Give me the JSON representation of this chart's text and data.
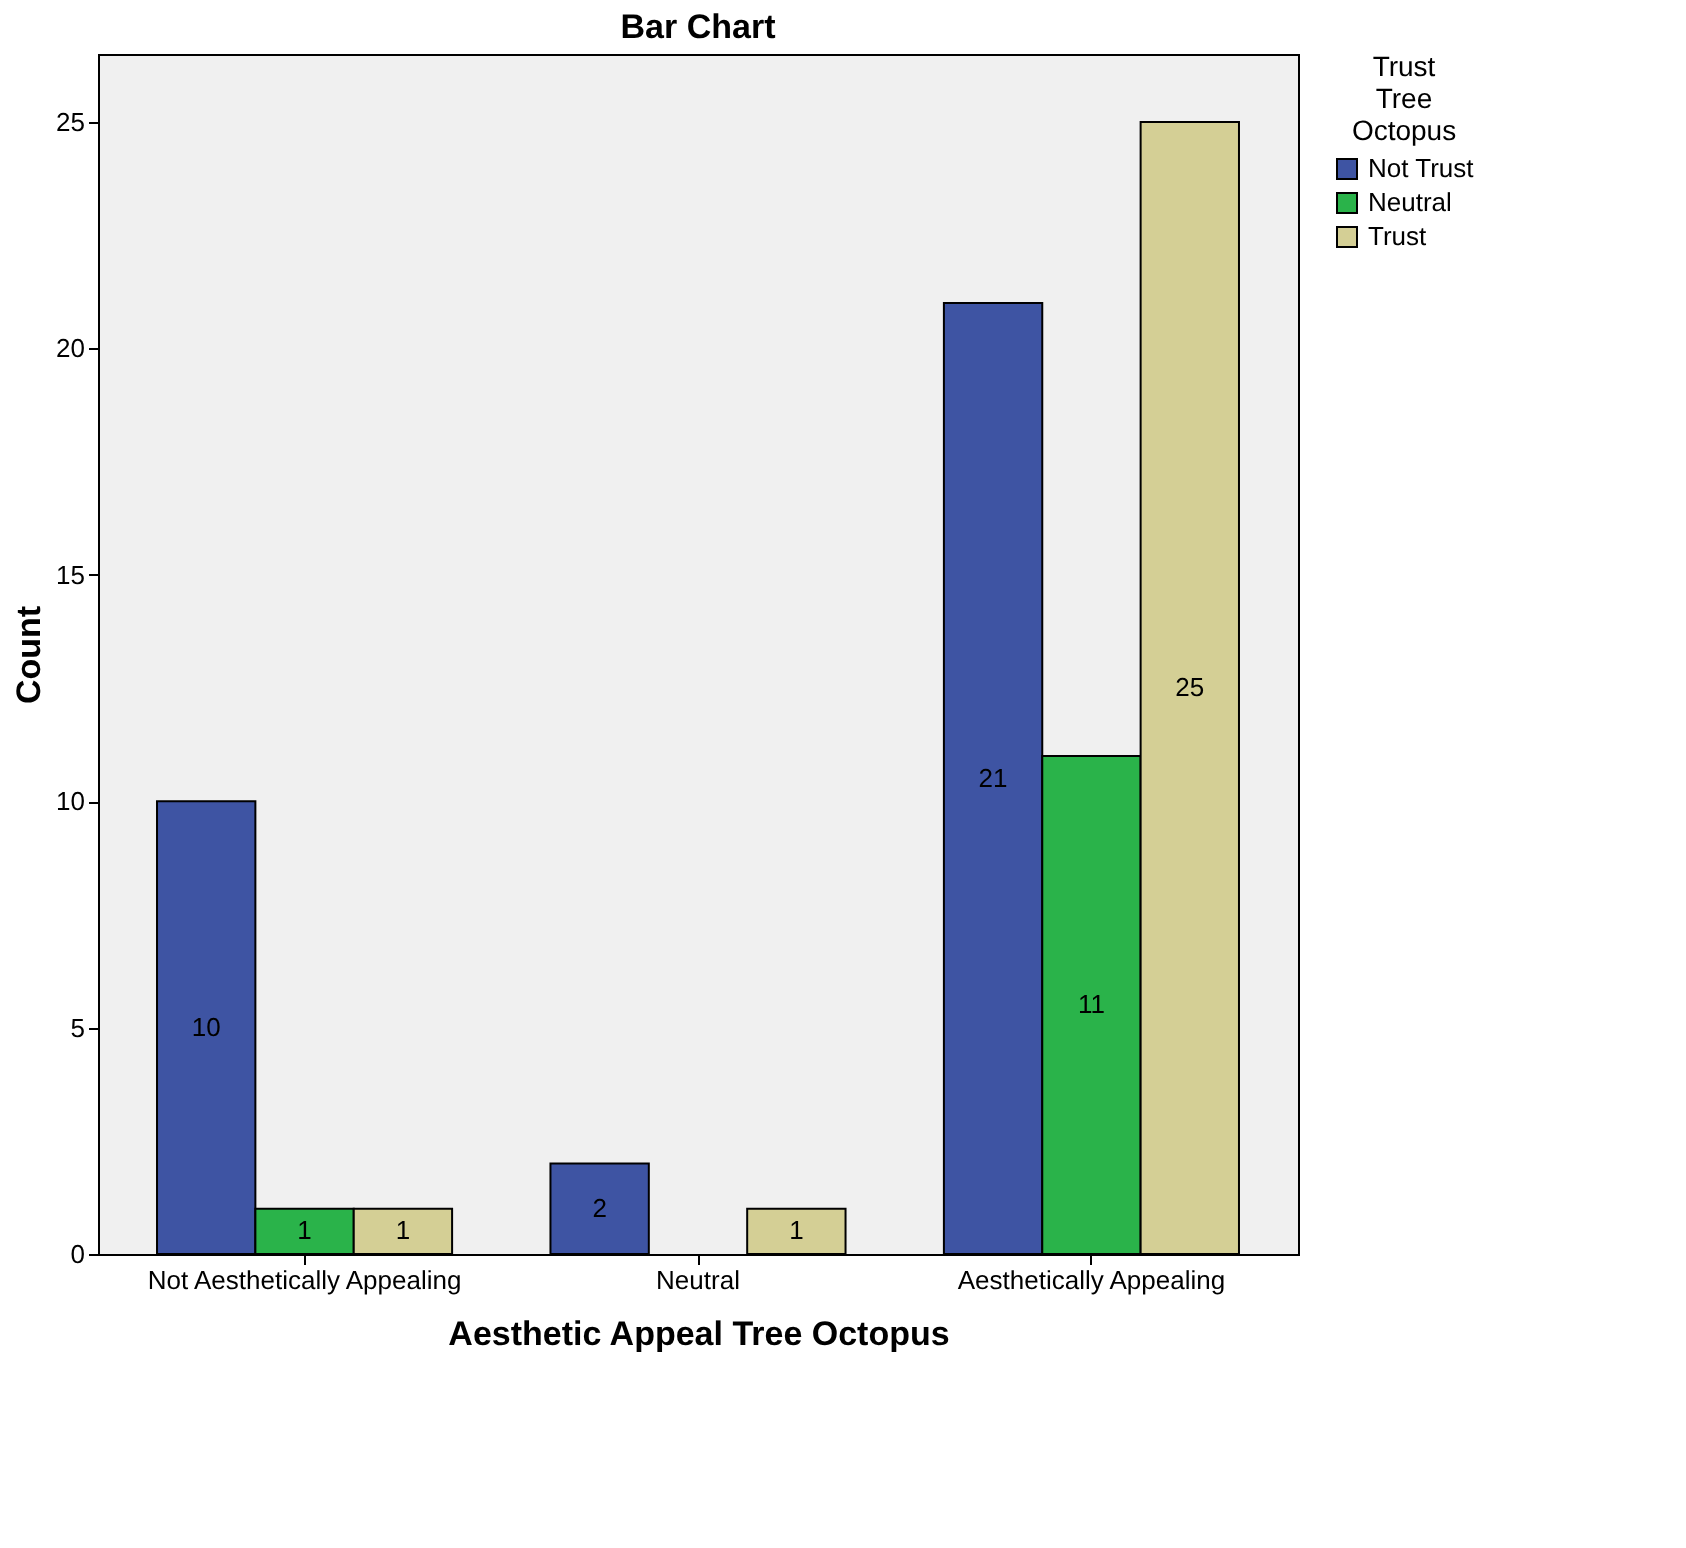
{
  "chart_data": {
    "type": "bar",
    "title": "Bar Chart",
    "xlabel": "Aesthetic Appeal Tree Octopus",
    "ylabel": "Count",
    "legend_title": "Trust Tree Octopus",
    "categories": [
      "Not Aesthetically Appealing",
      "Neutral",
      "Aesthetically Appealing"
    ],
    "series": [
      {
        "name": "Not Trust",
        "color": "#3e54a3",
        "values": [
          10,
          2,
          21
        ]
      },
      {
        "name": "Neutral",
        "color": "#2ab34a",
        "values": [
          1,
          null,
          11
        ]
      },
      {
        "name": "Trust",
        "color": "#d4cf95",
        "values": [
          1,
          1,
          25
        ]
      }
    ],
    "ylim": [
      0,
      26.5
    ],
    "yticks": [
      0,
      5,
      10,
      15,
      20,
      25
    ],
    "grid": false,
    "legend": "top right",
    "data_labels": true
  }
}
